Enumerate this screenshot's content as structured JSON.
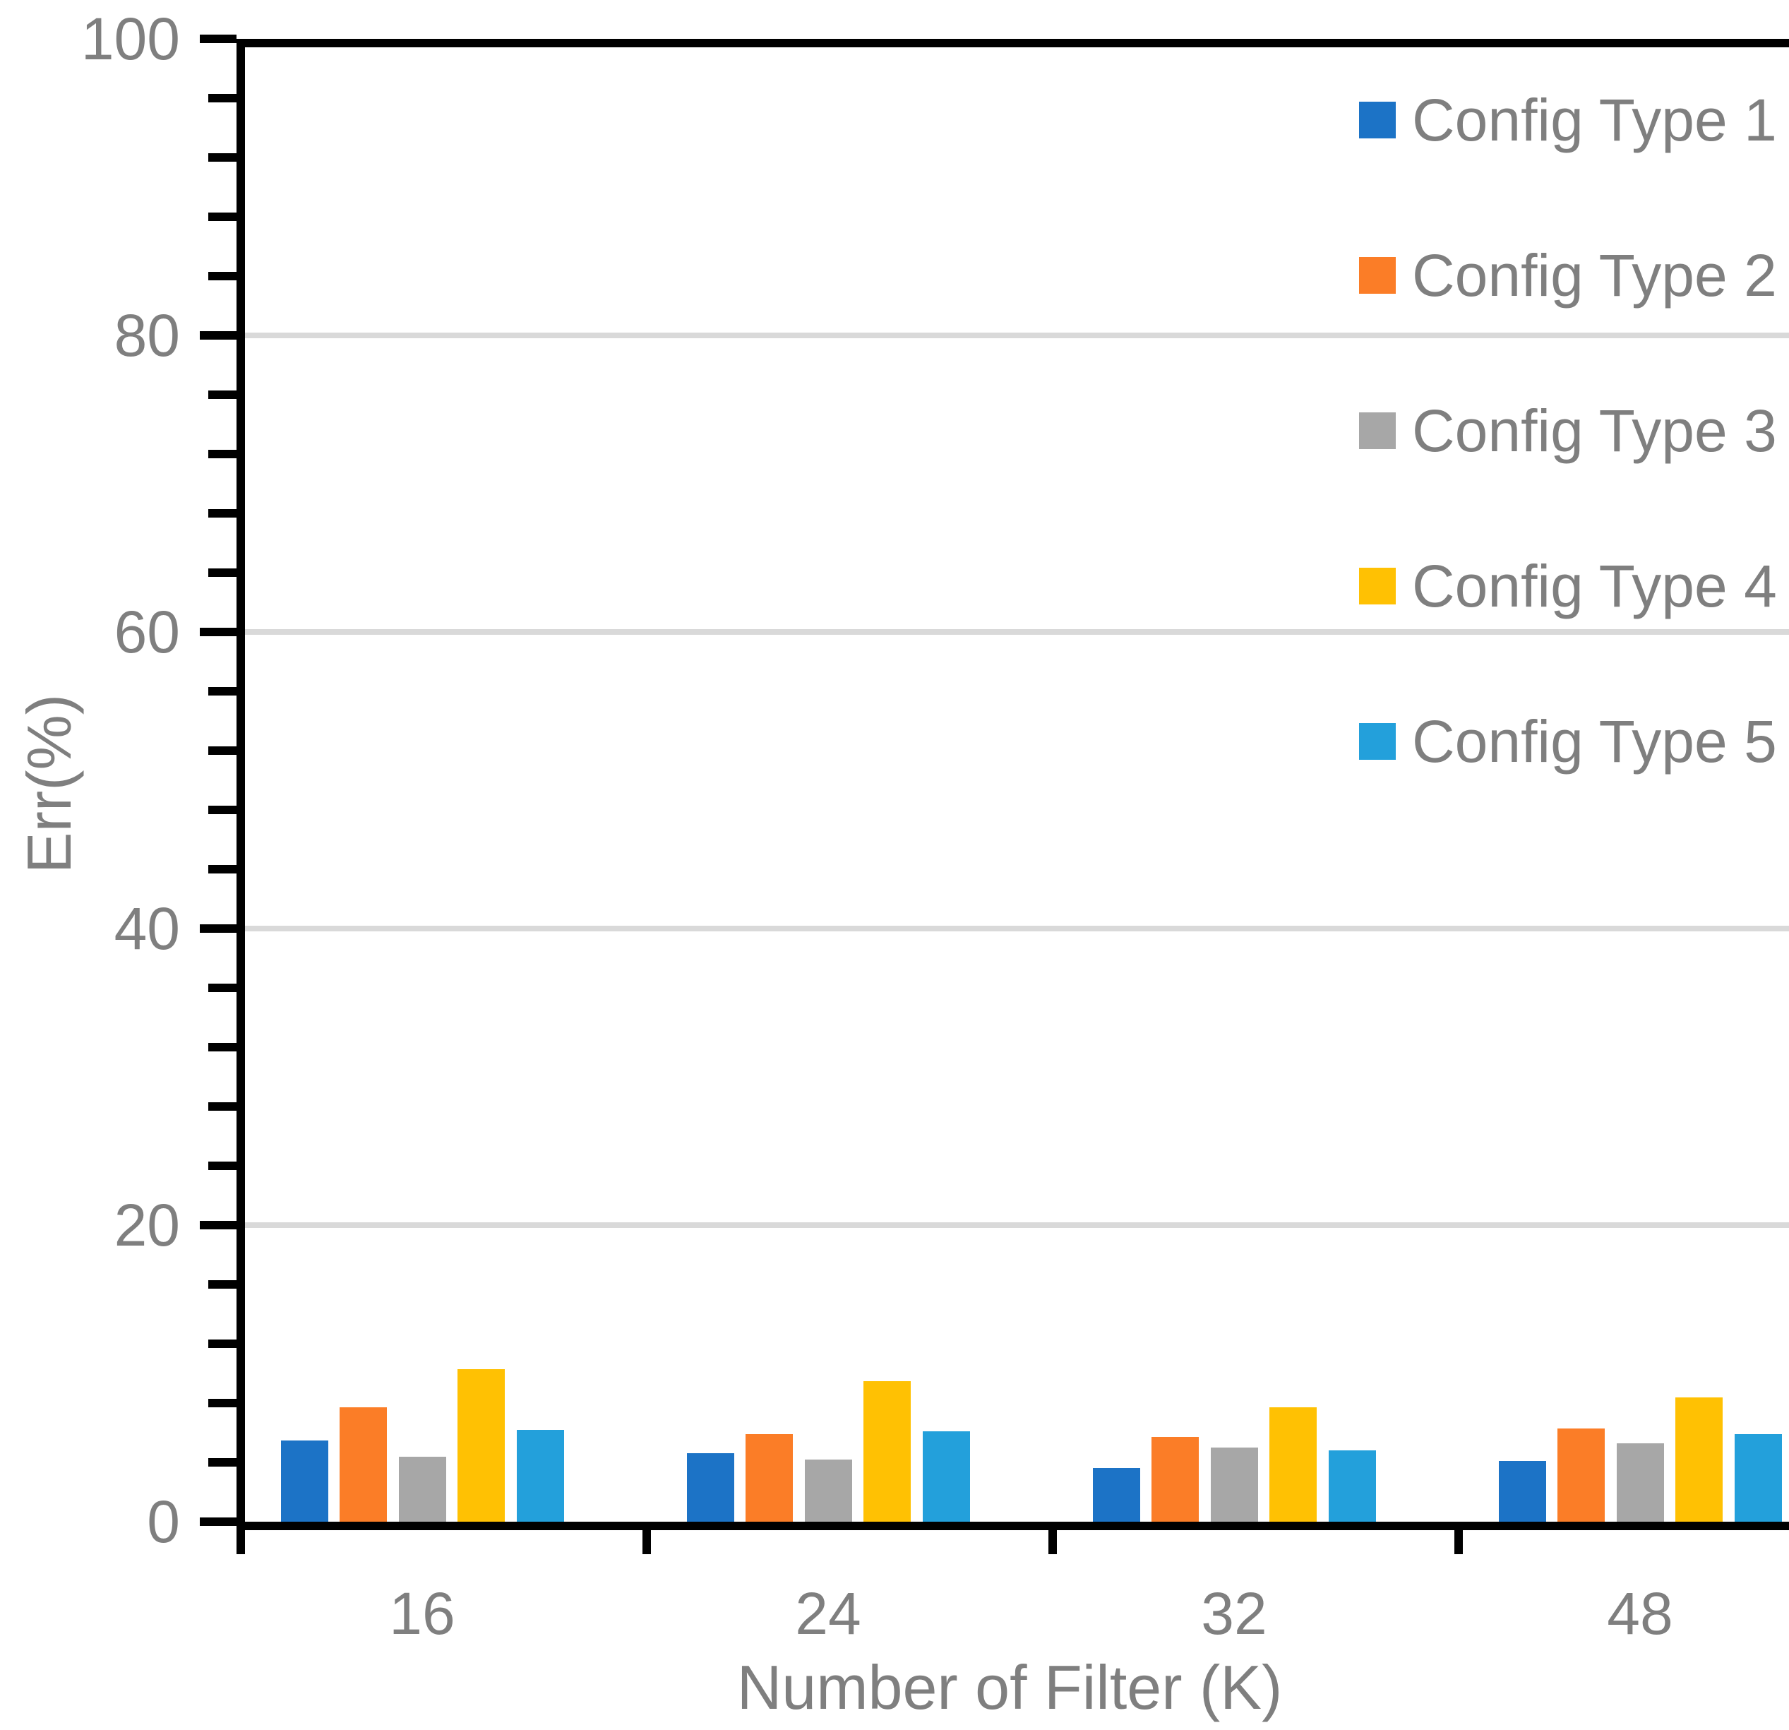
{
  "chart_data": {
    "type": "bar",
    "title": "",
    "xlabel": "Number of Filter (K)",
    "ylabel": "Err(%)",
    "categories": [
      "16",
      "24",
      "32",
      "48"
    ],
    "series": [
      {
        "name": "Config Type 1",
        "color": "#1C73C6",
        "values": [
          5.5,
          4.6,
          3.6,
          4.1
        ]
      },
      {
        "name": "Config Type 2",
        "color": "#FB7D27",
        "values": [
          7.7,
          5.9,
          5.7,
          6.3
        ]
      },
      {
        "name": "Config Type 3",
        "color": "#A7A7A7",
        "values": [
          4.4,
          4.2,
          5.0,
          5.3
        ]
      },
      {
        "name": "Config Type 4",
        "color": "#FFC103",
        "values": [
          10.3,
          9.5,
          7.7,
          8.4
        ]
      },
      {
        "name": "Config Type 5",
        "color": "#23A0DB",
        "values": [
          6.2,
          6.1,
          4.8,
          5.9
        ]
      }
    ],
    "y_axis": {
      "min": 0,
      "max": 100,
      "major_tick_step": 20,
      "minor_tick_step": 4,
      "tick_labels": [
        "0",
        "20",
        "40",
        "60",
        "80",
        "100"
      ]
    },
    "gridline_values": [
      20,
      40,
      60,
      80
    ],
    "legend_position": "top-right",
    "grid_on": true,
    "colors": {
      "gridline": "#D9D9D9",
      "axis": "#000000",
      "label_text": "#7F7F7F",
      "background": "#FFFFFF"
    }
  }
}
